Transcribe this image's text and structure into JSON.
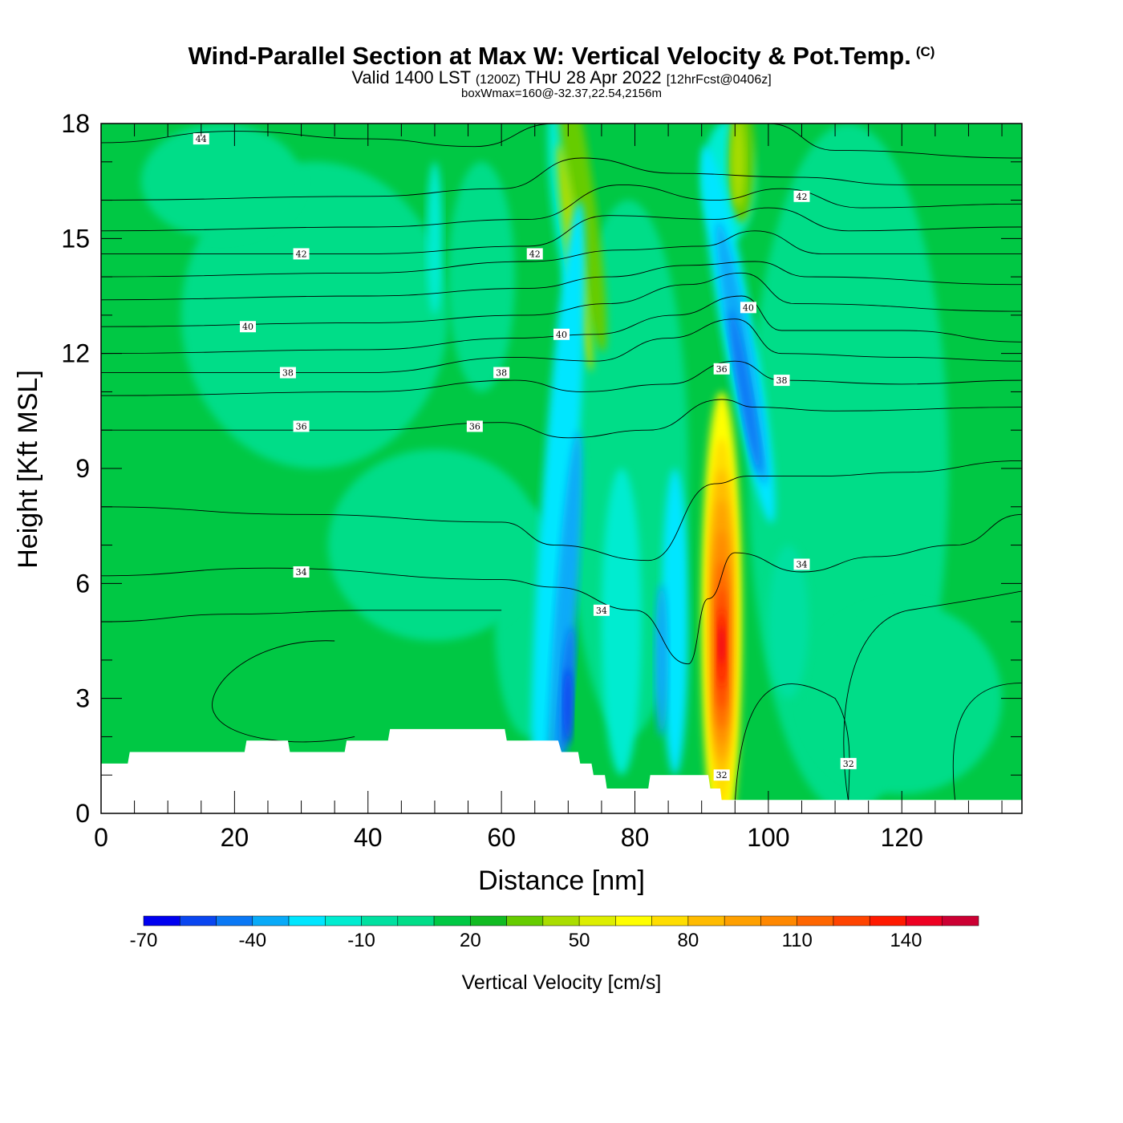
{
  "title": "Wind-Parallel Section at Max W: Vertical Velocity & Pot.Temp.",
  "title_mark": "(C)",
  "subtitle_main": "Valid 1400 LST",
  "subtitle_zulu": "(1200Z)",
  "subtitle_date": "THU 28 Apr 2022",
  "subtitle_fcst": "[12hrFcst@0406z]",
  "subline": "boxWmax=160@-32.37,22.54,2156m",
  "chart_data": {
    "type": "heatmap",
    "description_variable": "Vertical Velocity [cm/s] with potential temperature contours",
    "xlabel": "Distance [nm]",
    "ylabel": "Height [Kft MSL]",
    "xlim": [
      0,
      138
    ],
    "ylim": [
      0,
      18
    ],
    "xticks": [
      0,
      20,
      40,
      60,
      80,
      100,
      120
    ],
    "yticks": [
      0,
      3,
      6,
      9,
      12,
      15,
      18
    ],
    "colorbar": {
      "title": "Vertical Velocity [cm/s]",
      "levels": [
        -70,
        -60,
        -50,
        -40,
        -30,
        -20,
        -10,
        0,
        10,
        20,
        30,
        40,
        50,
        60,
        70,
        80,
        90,
        100,
        110,
        120,
        130,
        140,
        150,
        160
      ],
      "tick_labels": [
        -70,
        -40,
        -10,
        20,
        50,
        80,
        110,
        140
      ],
      "colors": [
        "#0000f0",
        "#0a46f0",
        "#0a78f5",
        "#08aaf8",
        "#00e6ff",
        "#00ecd0",
        "#00e0a0",
        "#00dd88",
        "#00c844",
        "#11bb22",
        "#66cc00",
        "#aadd00",
        "#ddee00",
        "#ffff00",
        "#ffdd00",
        "#ffbb00",
        "#ffa000",
        "#ff8800",
        "#ff6600",
        "#ff4400",
        "#ff1a00",
        "#ee0022",
        "#cc0033"
      ]
    },
    "updraft_max": {
      "x": 93,
      "height_kft": 4.5,
      "w_cms": 160
    },
    "downdraft_zones": [
      {
        "x": 69,
        "height_kft_range": [
          1.5,
          12
        ],
        "w_cms_min": -70
      },
      {
        "x": 95,
        "height_kft_range": [
          9,
          17
        ],
        "w_cms_min": -60
      }
    ],
    "theta_contours": [
      {
        "value": 32,
        "label_at": [
          [
            93,
            1.0
          ],
          [
            112,
            1.3
          ]
        ]
      },
      {
        "value": 34,
        "label_at": [
          [
            30,
            6.3
          ],
          [
            75,
            5.3
          ],
          [
            105,
            6.5
          ]
        ]
      },
      {
        "value": 36,
        "label_at": [
          [
            30,
            10.1
          ],
          [
            56,
            10.1
          ],
          [
            93,
            11.6
          ]
        ]
      },
      {
        "value": 38,
        "label_at": [
          [
            28,
            11.5
          ],
          [
            60,
            11.5
          ],
          [
            102,
            11.3
          ]
        ]
      },
      {
        "value": 40,
        "label_at": [
          [
            22,
            12.7
          ],
          [
            69,
            12.5
          ],
          [
            97,
            13.2
          ]
        ]
      },
      {
        "value": 42,
        "label_at": [
          [
            30,
            14.6
          ],
          [
            65,
            14.6
          ],
          [
            105,
            16.1
          ]
        ]
      },
      {
        "value": 44,
        "label_at": [
          [
            15,
            17.6
          ]
        ]
      }
    ],
    "terrain_kft": [
      [
        0,
        1.3
      ],
      [
        4,
        1.3
      ],
      [
        4.3,
        1.6
      ],
      [
        21.5,
        1.6
      ],
      [
        21.8,
        1.9
      ],
      [
        28,
        1.9
      ],
      [
        28.3,
        1.6
      ],
      [
        36.5,
        1.6
      ],
      [
        36.8,
        1.9
      ],
      [
        43,
        1.9
      ],
      [
        43.3,
        2.2
      ],
      [
        60.5,
        2.2
      ],
      [
        60.8,
        1.9
      ],
      [
        68.5,
        1.9
      ],
      [
        69,
        1.6
      ],
      [
        71.5,
        1.6
      ],
      [
        71.8,
        1.3
      ],
      [
        73.5,
        1.3
      ],
      [
        73.8,
        1.0
      ],
      [
        75.5,
        1.0
      ],
      [
        75.8,
        0.65
      ],
      [
        82,
        0.65
      ],
      [
        82.3,
        1.0
      ],
      [
        91,
        1.0
      ],
      [
        91.3,
        0.65
      ],
      [
        92.8,
        0.65
      ],
      [
        93,
        0.35
      ],
      [
        138,
        0.35
      ]
    ]
  }
}
